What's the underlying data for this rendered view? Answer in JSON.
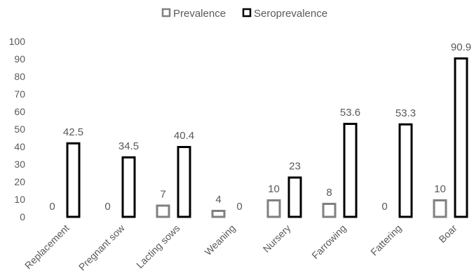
{
  "chart_data": {
    "type": "bar",
    "categories": [
      "Replacement",
      "Pregnant sow",
      "Lacting sows",
      "Weaning",
      "Nursery",
      "Farrowing",
      "Fattering",
      "Boar"
    ],
    "series": [
      {
        "name": "Prevalence",
        "values": [
          0,
          0,
          7,
          4,
          10,
          8,
          0,
          10
        ],
        "labels": [
          "0",
          "0",
          "7",
          "4",
          "10",
          "8",
          "0",
          "10"
        ],
        "color": "#808080"
      },
      {
        "name": "Seroprevalence",
        "values": [
          42.5,
          34.5,
          40.4,
          0,
          23,
          53.6,
          53.3,
          90.9
        ],
        "labels": [
          "42.5",
          "34.5",
          "40.4",
          "0",
          "23",
          "53.6",
          "53.3",
          "90.9"
        ],
        "color": "#000000"
      }
    ],
    "ylim": [
      0,
      100
    ],
    "yticks": [
      "0",
      "10",
      "20",
      "30",
      "40",
      "50",
      "60",
      "70",
      "80",
      "90",
      "100"
    ],
    "grid": false,
    "legend": "top-center"
  }
}
